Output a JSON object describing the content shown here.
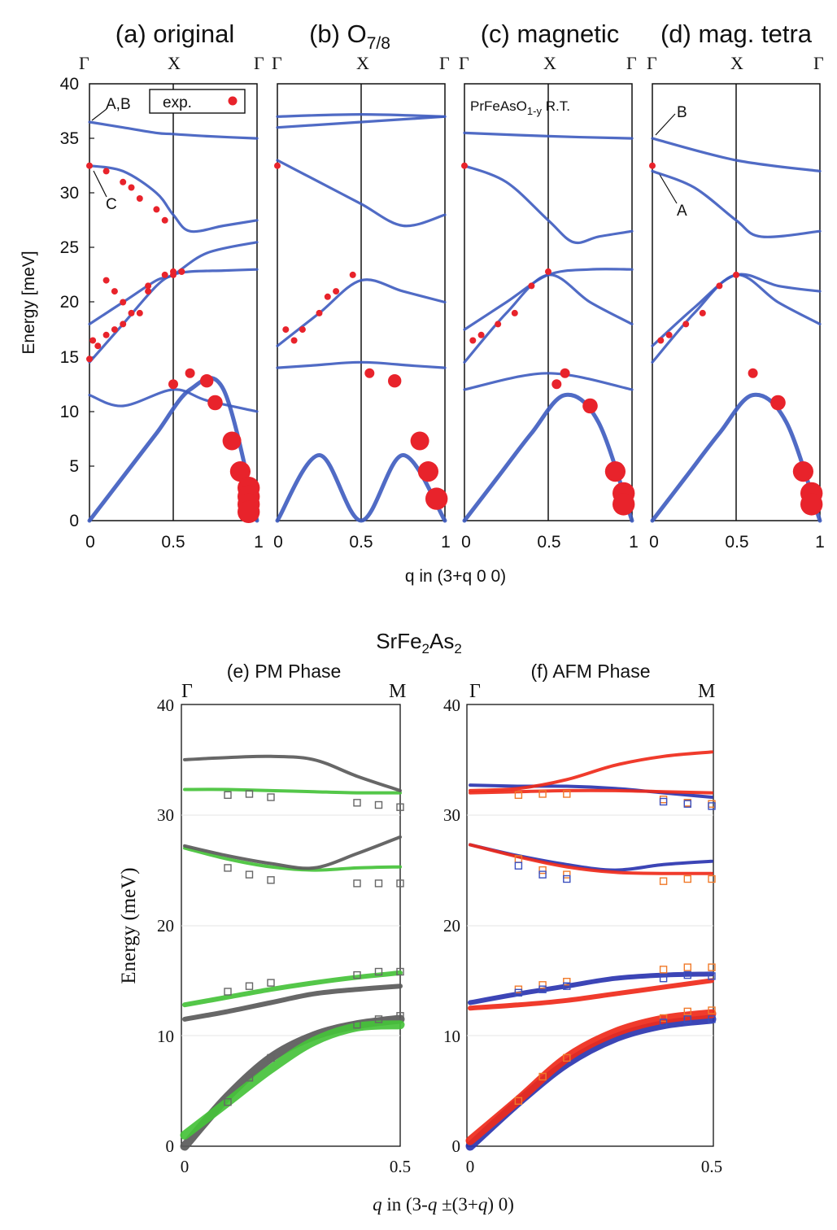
{
  "top_panels": {
    "titles": [
      "(a) original",
      "(b) O",
      "(c) magnetic",
      "(d) mag. tetra"
    ],
    "title_b_subscript": "7/8",
    "sym_points": [
      "Γ",
      "X",
      "Γ"
    ],
    "ylabel": "Energy [meV]",
    "xlabel": "q in (3+q 0 0)",
    "yticks": [
      "0",
      "5",
      "10",
      "15",
      "20",
      "25",
      "30",
      "35",
      "40"
    ],
    "xticks": [
      "0",
      "0.5",
      "1"
    ],
    "legend_label": "exp.",
    "annotation_ab": "A,B",
    "annotation_c": "C",
    "annotation_a": "A",
    "annotation_b": "B",
    "inset_text_main": "PrFeAsO",
    "inset_text_sub": "1-y",
    "inset_text_tail": " R.T."
  },
  "bottom_panels": {
    "compound": "SrFe",
    "compound_sub1": "2",
    "compound_mid": "As",
    "compound_sub2": "2",
    "titles": [
      "(e) PM Phase",
      "(f) AFM Phase"
    ],
    "sym_points": [
      "Γ",
      "M"
    ],
    "ylabel": "Energy (meV)",
    "xlabel_q": "q",
    "xlabel_rest1": " in (3-",
    "xlabel_q2": "q",
    "xlabel_rest2": "  ±(3+",
    "xlabel_q3": "q",
    "xlabel_rest3": ")  0)",
    "yticks": [
      "0",
      "10",
      "20",
      "30",
      "40"
    ],
    "xticks": [
      "0",
      "0.5"
    ]
  },
  "colors": {
    "calc_blue": "#3d5bbf",
    "exp_red": "#e8232b",
    "pm_gray": "#5a5a5a",
    "pm_green": "#45c23a",
    "afm_blue": "#2b35b0",
    "afm_red": "#ef2a1a",
    "square_gray": "#666666",
    "square_orange": "#f07a2a",
    "square_blue": "#3a4fbf"
  },
  "chart_data": [
    {
      "type": "scatter",
      "title": "(a) original",
      "xlabel": "q in (3+q 0 0)",
      "ylabel": "Energy [meV]",
      "xlim": [
        0,
        1
      ],
      "ylim": [
        0,
        40
      ],
      "legend": "top-right",
      "calc_branches": [
        {
          "x": [
            0,
            0.2,
            0.4,
            0.6,
            0.8,
            1.0
          ],
          "y": [
            0,
            4,
            8,
            12,
            12,
            0
          ]
        },
        {
          "x": [
            0,
            0.2,
            0.4,
            0.5,
            0.6,
            0.8,
            1.0
          ],
          "y": [
            14.5,
            18,
            21.5,
            22.5,
            22.8,
            22.9,
            23
          ]
        },
        {
          "x": [
            0,
            0.2,
            0.4,
            0.5,
            0.7,
            1.0
          ],
          "y": [
            18,
            20,
            22,
            22.5,
            24.5,
            25.5
          ]
        },
        {
          "x": [
            0,
            0.2,
            0.4,
            0.5,
            0.6,
            0.8,
            1.0
          ],
          "y": [
            32.5,
            32,
            30,
            28,
            26.5,
            27,
            27.5
          ]
        },
        {
          "x": [
            0,
            0.2,
            0.4,
            0.5,
            0.7,
            1.0
          ],
          "y": [
            36.5,
            36,
            35.5,
            35.4,
            35.2,
            35
          ]
        },
        {
          "x": [
            0,
            0.2,
            0.5,
            0.7,
            1.0
          ],
          "y": [
            11.5,
            10.5,
            12,
            11,
            10
          ]
        }
      ],
      "exp_points": {
        "q": [
          0,
          0,
          0.02,
          0.05,
          0.1,
          0.15,
          0.2,
          0.3,
          0.35,
          0.5,
          0.6,
          0.7,
          0.75,
          0.85,
          0.9,
          0.95,
          0.95,
          0.95,
          0.95,
          0.1,
          0.2,
          0.25,
          0.3,
          0.4,
          0.45,
          0.5,
          0.55,
          0.1,
          0.15,
          0.2,
          0.25,
          0.35,
          0.45,
          0.5,
          0.55
        ],
        "E": [
          32.5,
          14.8,
          16.5,
          16,
          17,
          17.5,
          18,
          19,
          21,
          12.5,
          13.5,
          12.8,
          10.8,
          7.3,
          4.5,
          3,
          2.2,
          1.5,
          0.8,
          32,
          31,
          30.5,
          29.5,
          28.5,
          27.5,
          22.5,
          22.8,
          22,
          21,
          20,
          19,
          21.5,
          22.5,
          22.8,
          22.8
        ]
      }
    },
    {
      "type": "scatter",
      "title": "(b) O7/8",
      "xlabel": "q in (3+q 0 0)",
      "xlim": [
        0,
        1
      ],
      "ylim": [
        0,
        40
      ],
      "calc_branches": [
        {
          "x": [
            0,
            0.25,
            0.5,
            0.75,
            1.0
          ],
          "y": [
            0,
            6,
            0,
            6,
            0
          ]
        },
        {
          "x": [
            0,
            0.2,
            0.5,
            0.8,
            1.0
          ],
          "y": [
            14,
            14.2,
            14.5,
            14.2,
            14
          ]
        },
        {
          "x": [
            0,
            0.25,
            0.5,
            0.75,
            1.0
          ],
          "y": [
            16,
            19,
            22,
            21,
            20
          ]
        },
        {
          "x": [
            0,
            0.25,
            0.5,
            0.75,
            1.0
          ],
          "y": [
            33,
            31,
            29,
            27,
            28
          ]
        },
        {
          "x": [
            0,
            0.5,
            1.0
          ],
          "y": [
            36,
            36.5,
            37
          ]
        },
        {
          "x": [
            0,
            0.5,
            1.0
          ],
          "y": [
            37,
            37.2,
            37
          ]
        }
      ],
      "exp_points": {
        "q": [
          0,
          0.05,
          0.1,
          0.15,
          0.25,
          0.3,
          0.35,
          0.45,
          0.55,
          0.7,
          0.85,
          0.9,
          0.95
        ],
        "E": [
          32.5,
          17.5,
          16.5,
          17.5,
          19,
          20.5,
          21,
          22.5,
          13.5,
          12.8,
          7.3,
          4.5,
          2
        ]
      }
    },
    {
      "type": "scatter",
      "title": "(c) magnetic",
      "annotation": "PrFeAsO1-y R.T.",
      "xlim": [
        0,
        1
      ],
      "ylim": [
        0,
        40
      ],
      "calc_branches": [
        {
          "x": [
            0,
            0.2,
            0.4,
            0.6,
            0.8,
            1.0
          ],
          "y": [
            0,
            4,
            8,
            11.5,
            9,
            0
          ]
        },
        {
          "x": [
            0,
            0.25,
            0.5,
            0.75,
            1.0
          ],
          "y": [
            14.5,
            19,
            22.5,
            20,
            18
          ]
        },
        {
          "x": [
            0,
            0.25,
            0.5,
            0.75,
            1.0
          ],
          "y": [
            17.5,
            20,
            22.5,
            23,
            23
          ]
        },
        {
          "x": [
            0,
            0.25,
            0.5,
            0.65,
            0.8,
            1.0
          ],
          "y": [
            32.5,
            31,
            27.5,
            25.5,
            26,
            26.5
          ]
        },
        {
          "x": [
            0,
            0.5,
            1.0
          ],
          "y": [
            35.5,
            35.2,
            35
          ]
        },
        {
          "x": [
            0,
            0.5,
            1.0
          ],
          "y": [
            12,
            13.5,
            12
          ]
        }
      ],
      "exp_points": {
        "q": [
          0,
          0.05,
          0.1,
          0.2,
          0.3,
          0.4,
          0.5,
          0.55,
          0.6,
          0.75,
          0.9,
          0.95,
          0.95
        ],
        "E": [
          32.5,
          16.5,
          17,
          18,
          19,
          21.5,
          22.8,
          12.5,
          13.5,
          10.5,
          4.5,
          2.5,
          1.5
        ]
      }
    },
    {
      "type": "scatter",
      "title": "(d) mag. tetra",
      "xlim": [
        0,
        1
      ],
      "ylim": [
        0,
        40
      ],
      "calc_branches": [
        {
          "x": [
            0,
            0.2,
            0.4,
            0.6,
            0.8,
            1.0
          ],
          "y": [
            0,
            4,
            8,
            11.5,
            9,
            0
          ]
        },
        {
          "x": [
            0,
            0.25,
            0.5,
            0.75,
            1.0
          ],
          "y": [
            14.5,
            19,
            22.5,
            20,
            18
          ]
        },
        {
          "x": [
            0,
            0.25,
            0.5,
            0.75,
            1.0
          ],
          "y": [
            16,
            19.5,
            22.5,
            21.5,
            21
          ]
        },
        {
          "x": [
            0,
            0.25,
            0.5,
            0.65,
            1.0
          ],
          "y": [
            32,
            30.5,
            27.5,
            26,
            26.5
          ]
        },
        {
          "x": [
            0,
            0.5,
            1.0
          ],
          "y": [
            35,
            33,
            32
          ]
        }
      ],
      "exp_points": {
        "q": [
          0,
          0.05,
          0.1,
          0.2,
          0.3,
          0.4,
          0.5,
          0.6,
          0.75,
          0.9,
          0.95,
          0.95
        ],
        "E": [
          32.5,
          16.5,
          17,
          18,
          19,
          21.5,
          22.5,
          13.5,
          10.8,
          4.5,
          2.5,
          1.5
        ]
      }
    },
    {
      "type": "line",
      "title": "(e) PM Phase",
      "xlabel": "q in (3-q ±(3+q) 0)",
      "ylabel": "Energy (meV)",
      "xlim": [
        0,
        0.5
      ],
      "ylim": [
        0,
        40
      ],
      "series": [
        {
          "color": "gray",
          "x": [
            0,
            0.1,
            0.2,
            0.3,
            0.4,
            0.5
          ],
          "y": [
            0,
            4.5,
            8,
            10,
            11,
            11.5
          ]
        },
        {
          "color": "green",
          "x": [
            0,
            0.1,
            0.2,
            0.3,
            0.4,
            0.5
          ],
          "y": [
            1,
            4,
            7,
            9.5,
            10.8,
            11
          ]
        },
        {
          "color": "gray",
          "x": [
            0,
            0.1,
            0.2,
            0.3,
            0.4,
            0.5
          ],
          "y": [
            11.5,
            12.2,
            13,
            13.8,
            14.2,
            14.5
          ]
        },
        {
          "color": "green",
          "x": [
            0,
            0.1,
            0.2,
            0.3,
            0.4,
            0.5
          ],
          "y": [
            12.8,
            13.5,
            14.2,
            14.8,
            15.3,
            15.7
          ]
        },
        {
          "color": "green",
          "x": [
            0,
            0.1,
            0.2,
            0.3,
            0.4,
            0.5
          ],
          "y": [
            27,
            26,
            25.3,
            25,
            25.2,
            25.3
          ]
        },
        {
          "color": "gray",
          "x": [
            0,
            0.1,
            0.2,
            0.3,
            0.4,
            0.5
          ],
          "y": [
            27.2,
            26.3,
            25.6,
            25.2,
            26.5,
            28
          ]
        },
        {
          "color": "green",
          "x": [
            0,
            0.1,
            0.2,
            0.3,
            0.4,
            0.5
          ],
          "y": [
            32.3,
            32.3,
            32.2,
            32.1,
            32,
            32
          ]
        },
        {
          "color": "gray",
          "x": [
            0,
            0.1,
            0.2,
            0.3,
            0.4,
            0.5
          ],
          "y": [
            35,
            35.2,
            35.3,
            35,
            33.5,
            32.2
          ]
        }
      ],
      "exp_squares": {
        "q": [
          0.1,
          0.15,
          0.2,
          0.4,
          0.45,
          0.5,
          0.1,
          0.15,
          0.2,
          0.4,
          0.45,
          0.5,
          0.1,
          0.15,
          0.2,
          0.4,
          0.45,
          0.5,
          0.1,
          0.15,
          0.2,
          0.4,
          0.45,
          0.5
        ],
        "E": [
          4,
          6.2,
          8,
          11,
          11.5,
          11.8,
          14,
          14.5,
          14.8,
          15.5,
          15.8,
          15.8,
          25.2,
          24.6,
          24.1,
          23.8,
          23.8,
          23.8,
          31.8,
          31.9,
          31.6,
          31.1,
          30.9,
          30.7
        ]
      }
    },
    {
      "type": "line",
      "title": "(f) AFM Phase",
      "xlabel": "q in (3-q ±(3+q) 0)",
      "xlim": [
        0,
        0.5
      ],
      "ylim": [
        0,
        40
      ],
      "series": [
        {
          "color": "blue",
          "x": [
            0,
            0.1,
            0.2,
            0.3,
            0.4,
            0.5
          ],
          "y": [
            0,
            4,
            7.5,
            9.8,
            11,
            11.5
          ]
        },
        {
          "color": "red",
          "x": [
            0,
            0.1,
            0.2,
            0.3,
            0.4,
            0.5
          ],
          "y": [
            0.5,
            4.2,
            8,
            10.3,
            11.5,
            12
          ]
        },
        {
          "color": "blue",
          "x": [
            0,
            0.1,
            0.2,
            0.3,
            0.4,
            0.5
          ],
          "y": [
            13,
            13.8,
            14.5,
            15.2,
            15.5,
            15.6
          ]
        },
        {
          "color": "red",
          "x": [
            0,
            0.1,
            0.2,
            0.3,
            0.4,
            0.5
          ],
          "y": [
            12.5,
            12.8,
            13.2,
            13.8,
            14.4,
            15
          ]
        },
        {
          "color": "blue",
          "x": [
            0,
            0.1,
            0.2,
            0.3,
            0.4,
            0.5
          ],
          "y": [
            27.3,
            26.3,
            25.5,
            25,
            25.5,
            25.8
          ]
        },
        {
          "color": "red",
          "x": [
            0,
            0.1,
            0.2,
            0.3,
            0.4,
            0.5
          ],
          "y": [
            27.3,
            26.2,
            25.3,
            24.8,
            24.7,
            24.7
          ]
        },
        {
          "color": "blue",
          "x": [
            0,
            0.1,
            0.2,
            0.3,
            0.4,
            0.5
          ],
          "y": [
            32.7,
            32.6,
            32.6,
            32.4,
            32,
            31.6
          ]
        },
        {
          "color": "red",
          "x": [
            0,
            0.1,
            0.2,
            0.3,
            0.4,
            0.5
          ],
          "y": [
            32,
            32.1,
            32.2,
            32.2,
            32.1,
            32
          ]
        },
        {
          "color": "red",
          "x": [
            0,
            0.1,
            0.2,
            0.3,
            0.4,
            0.5
          ],
          "y": [
            32.2,
            32.4,
            33.2,
            34.5,
            35.3,
            35.7
          ]
        }
      ],
      "exp_squares_orange": {
        "q": [
          0.1,
          0.15,
          0.2,
          0.4,
          0.45,
          0.5,
          0.1,
          0.15,
          0.2,
          0.4,
          0.45,
          0.5,
          0.1,
          0.15,
          0.2,
          0.4,
          0.45,
          0.5,
          0.1,
          0.15,
          0.2,
          0.4,
          0.45,
          0.5
        ],
        "E": [
          4.1,
          6.3,
          8,
          11.6,
          12.2,
          12.3,
          14.2,
          14.6,
          14.9,
          16,
          16.2,
          16.2,
          26,
          25,
          24.6,
          24,
          24.2,
          24.2,
          31.8,
          31.9,
          31.9,
          31.4,
          31.1,
          31
        ]
      },
      "exp_squares_blue": {
        "q": [
          0.1,
          0.15,
          0.2,
          0.4,
          0.45,
          0.5,
          0.1,
          0.15,
          0.2,
          0.4,
          0.45,
          0.5,
          0.4,
          0.45,
          0.5
        ],
        "E": [
          25.4,
          24.6,
          24.2,
          11.2,
          11.5,
          11.5,
          13.9,
          14.2,
          14.5,
          31.2,
          31,
          30.8,
          15.2,
          15.5,
          15.4
        ]
      }
    }
  ]
}
